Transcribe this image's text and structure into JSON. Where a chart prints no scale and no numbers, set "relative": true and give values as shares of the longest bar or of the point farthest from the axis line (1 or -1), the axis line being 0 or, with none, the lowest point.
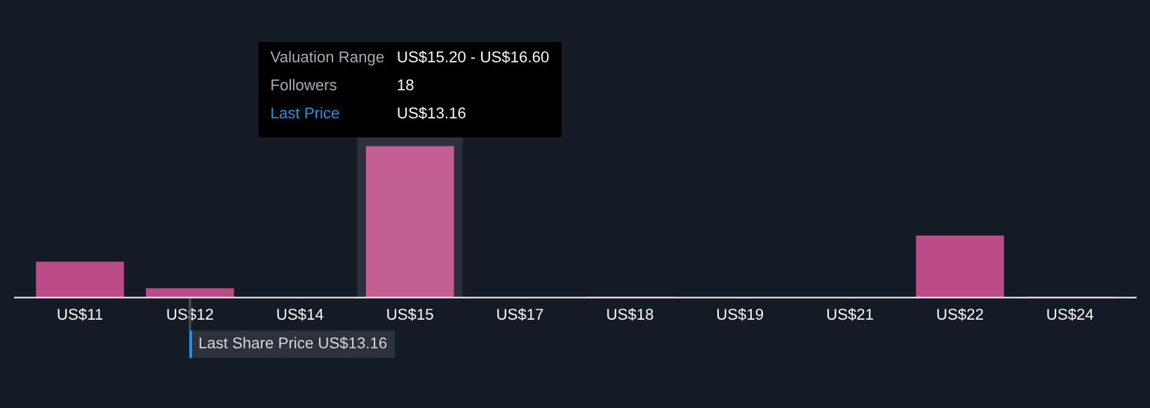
{
  "chart_data": {
    "type": "bar",
    "relative": true,
    "categories": [
      "US$11",
      "US$12",
      "US$14",
      "US$15",
      "US$17",
      "US$18",
      "US$19",
      "US$21",
      "US$22",
      "US$24"
    ],
    "values": [
      0.237,
      0.062,
      0,
      1,
      0,
      0.005,
      0,
      0,
      0.41,
      0.005
    ],
    "colors": [
      "#bc4c88",
      "#bc4c88",
      "#bc4c88",
      "#c45f95",
      "#bc4c88",
      "#bc4c88",
      "#bc4c88",
      "#bc4c88",
      "#bc4c88",
      "#bc4c88"
    ],
    "ref_lines": [
      {
        "axis": "x",
        "value": "US$12",
        "label": "Last Share Price US$13.16",
        "color": "#4b505a"
      }
    ],
    "bands": [
      {
        "axis": "x",
        "from": "US$15",
        "to": "US$15",
        "color": "#2c303b"
      }
    ],
    "annotations": [
      "Valuation Range",
      "US$15.20 - US$16.60",
      "Followers",
      "18",
      "Last Price",
      "US$13.16"
    ]
  }
}
